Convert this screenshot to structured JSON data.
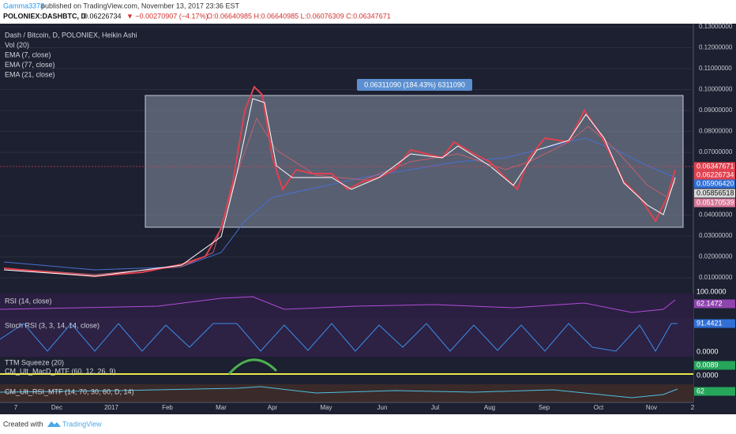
{
  "header": {
    "author": "Gamma3378",
    "published": "published on TradingView.com, November 13, 2017 23:36 EST",
    "symbol": "POLONIEX:DASHBTC, D",
    "last": "0.06226734",
    "change": "▼ −0.00270907 (−4.17%)",
    "ohlc": "O:0.06640985 H:0.06640985 L:0.06076309 C:0.06347671"
  },
  "legend": [
    "Dash / Bitcoin, D, POLONIEX, Heikin Ashi",
    "Vol (20)",
    "EMA (7, close)",
    "EMA (77, close)",
    "EMA (21, close)"
  ],
  "annotation": "0.06311090 (184.43%) 6311090",
  "price_axis": {
    "ylim": [
      0.0025,
      0.1315
    ],
    "yticks": [
      {
        "value": 0.13,
        "label": "0.13000000"
      },
      {
        "value": 0.12,
        "label": "0.12000000"
      },
      {
        "value": 0.11,
        "label": "0.11000000"
      },
      {
        "value": 0.1,
        "label": "0.10000000"
      },
      {
        "value": 0.09,
        "label": "0.09000000"
      },
      {
        "value": 0.08,
        "label": "0.08000000"
      },
      {
        "value": 0.07,
        "label": "0.07000000"
      },
      {
        "value": 0.04,
        "label": "0.04000000"
      },
      {
        "value": 0.03,
        "label": "0.03000000"
      },
      {
        "value": 0.02,
        "label": "0.02000000"
      },
      {
        "value": 0.01,
        "label": "0.01000000"
      }
    ]
  },
  "price_tags": [
    {
      "label": "0.06347671",
      "color": "#e0414f"
    },
    {
      "label": "0.06226734",
      "color": "#e0414f"
    },
    {
      "label": "0.05906420",
      "color": "#2f6fd6"
    },
    {
      "label": "0.05856518",
      "color": "#d9d9d9"
    },
    {
      "label": "0.05170539",
      "color": "#d77a9a"
    }
  ],
  "panes": [
    {
      "name": "RSI (14, close)",
      "tags": [
        "100.0000",
        "62.1472"
      ]
    },
    {
      "name": "Stoch RSI (3, 3, 14, 14, close)",
      "tags": [
        "91.4421",
        "0.0000"
      ]
    },
    {
      "name": "TTM Squeeze (20)",
      "tags": [
        "0.0089",
        "0.0000"
      ]
    },
    {
      "name": "CM_Ult_MacD_MTF (60, 12, 26, 9)",
      "tags": []
    },
    {
      "name": "CM_Ult_RSI_MTF (14, 70, 30, 60, D, 14)",
      "tags": [
        "62"
      ]
    }
  ],
  "x_axis": [
    "7",
    "Dec",
    "2017",
    "Feb",
    "Mar",
    "Apr",
    "May",
    "Jun",
    "Jul",
    "Aug",
    "Sep",
    "Oct",
    "Nov",
    "2"
  ],
  "footer": {
    "created": "Created with",
    "brand": "TradingView"
  }
}
